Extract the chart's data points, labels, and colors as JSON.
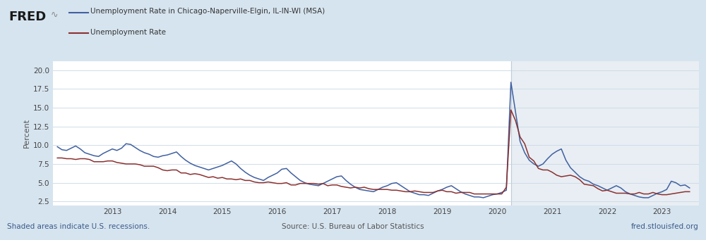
{
  "legend_chicago": "Unemployment Rate in Chicago-Naperville-Elgin, IL-IN-WI (MSA)",
  "legend_national": "Unemployment Rate",
  "ylabel": "Percent",
  "footer_left": "Shaded areas indicate U.S. recessions.",
  "footer_center": "Source: U.S. Bureau of Labor Statistics",
  "footer_right": "fred.stlouisfed.org",
  "bg_color": "#d6e4ef",
  "plot_bg_color": "#ffffff",
  "recession_bg_color": "#e8eef3",
  "chicago_color": "#4060a0",
  "national_color": "#8b3030",
  "yticks": [
    2.5,
    5.0,
    7.5,
    10.0,
    12.5,
    15.0,
    17.5,
    20.0
  ],
  "ylim": [
    2.0,
    21.2
  ],
  "recession_start": 2020.25,
  "xmin": 2011.92,
  "xmax": 2023.67,
  "xtick_positions": [
    2013.0,
    2014.0,
    2015.0,
    2016.0,
    2017.0,
    2018.0,
    2019.0,
    2020.0,
    2021.0,
    2022.0,
    2023.0
  ],
  "xtick_labels": [
    "2013",
    "2014",
    "2015",
    "2016",
    "2017",
    "2018",
    "2019",
    "2020",
    "2021",
    "2022",
    "2023"
  ],
  "dates_chicago": [
    2012.0,
    2012.083,
    2012.167,
    2012.25,
    2012.333,
    2012.417,
    2012.5,
    2012.583,
    2012.667,
    2012.75,
    2012.833,
    2012.917,
    2013.0,
    2013.083,
    2013.167,
    2013.25,
    2013.333,
    2013.417,
    2013.5,
    2013.583,
    2013.667,
    2013.75,
    2013.833,
    2013.917,
    2014.0,
    2014.083,
    2014.167,
    2014.25,
    2014.333,
    2014.417,
    2014.5,
    2014.583,
    2014.667,
    2014.75,
    2014.833,
    2014.917,
    2015.0,
    2015.083,
    2015.167,
    2015.25,
    2015.333,
    2015.417,
    2015.5,
    2015.583,
    2015.667,
    2015.75,
    2015.833,
    2015.917,
    2016.0,
    2016.083,
    2016.167,
    2016.25,
    2016.333,
    2016.417,
    2016.5,
    2016.583,
    2016.667,
    2016.75,
    2016.833,
    2016.917,
    2017.0,
    2017.083,
    2017.167,
    2017.25,
    2017.333,
    2017.417,
    2017.5,
    2017.583,
    2017.667,
    2017.75,
    2017.833,
    2017.917,
    2018.0,
    2018.083,
    2018.167,
    2018.25,
    2018.333,
    2018.417,
    2018.5,
    2018.583,
    2018.667,
    2018.75,
    2018.833,
    2018.917,
    2019.0,
    2019.083,
    2019.167,
    2019.25,
    2019.333,
    2019.417,
    2019.5,
    2019.583,
    2019.667,
    2019.75,
    2019.833,
    2019.917,
    2020.0,
    2020.083,
    2020.167,
    2020.25,
    2020.333,
    2020.417,
    2020.5,
    2020.583,
    2020.667,
    2020.75,
    2020.833,
    2020.917,
    2021.0,
    2021.083,
    2021.167,
    2021.25,
    2021.333,
    2021.417,
    2021.5,
    2021.583,
    2021.667,
    2021.75,
    2021.833,
    2021.917,
    2022.0,
    2022.083,
    2022.167,
    2022.25,
    2022.333,
    2022.417,
    2022.5,
    2022.583,
    2022.667,
    2022.75,
    2022.833,
    2022.917,
    2023.0,
    2023.083,
    2023.167,
    2023.25,
    2023.333,
    2023.417,
    2023.5
  ],
  "values_chicago": [
    9.8,
    9.4,
    9.3,
    9.6,
    9.9,
    9.5,
    9.0,
    8.8,
    8.6,
    8.5,
    8.9,
    9.2,
    9.5,
    9.3,
    9.6,
    10.2,
    10.1,
    9.7,
    9.3,
    9.0,
    8.8,
    8.5,
    8.4,
    8.6,
    8.7,
    8.9,
    9.1,
    8.5,
    8.0,
    7.6,
    7.3,
    7.1,
    6.9,
    6.7,
    6.9,
    7.1,
    7.3,
    7.6,
    7.9,
    7.5,
    6.9,
    6.4,
    6.0,
    5.7,
    5.5,
    5.3,
    5.7,
    6.0,
    6.3,
    6.8,
    6.9,
    6.3,
    5.8,
    5.3,
    5.0,
    4.8,
    4.7,
    4.6,
    4.9,
    5.2,
    5.5,
    5.8,
    5.9,
    5.3,
    4.8,
    4.4,
    4.1,
    4.0,
    3.9,
    3.8,
    4.1,
    4.4,
    4.6,
    4.9,
    5.0,
    4.6,
    4.2,
    3.8,
    3.6,
    3.4,
    3.4,
    3.3,
    3.6,
    3.9,
    4.1,
    4.4,
    4.6,
    4.2,
    3.8,
    3.5,
    3.3,
    3.1,
    3.1,
    3.0,
    3.2,
    3.4,
    3.5,
    3.7,
    4.0,
    18.4,
    14.5,
    10.5,
    9.0,
    8.0,
    7.5,
    7.2,
    7.5,
    8.2,
    8.8,
    9.2,
    9.5,
    8.0,
    7.0,
    6.4,
    5.8,
    5.4,
    5.2,
    4.8,
    4.6,
    4.3,
    4.0,
    4.3,
    4.6,
    4.3,
    3.8,
    3.5,
    3.3,
    3.1,
    3.0,
    3.0,
    3.3,
    3.6,
    3.8,
    4.1,
    5.2,
    5.0,
    4.6,
    4.7,
    4.3
  ],
  "dates_national": [
    2012.0,
    2012.083,
    2012.167,
    2012.25,
    2012.333,
    2012.417,
    2012.5,
    2012.583,
    2012.667,
    2012.75,
    2012.833,
    2012.917,
    2013.0,
    2013.083,
    2013.167,
    2013.25,
    2013.333,
    2013.417,
    2013.5,
    2013.583,
    2013.667,
    2013.75,
    2013.833,
    2013.917,
    2014.0,
    2014.083,
    2014.167,
    2014.25,
    2014.333,
    2014.417,
    2014.5,
    2014.583,
    2014.667,
    2014.75,
    2014.833,
    2014.917,
    2015.0,
    2015.083,
    2015.167,
    2015.25,
    2015.333,
    2015.417,
    2015.5,
    2015.583,
    2015.667,
    2015.75,
    2015.833,
    2015.917,
    2016.0,
    2016.083,
    2016.167,
    2016.25,
    2016.333,
    2016.417,
    2016.5,
    2016.583,
    2016.667,
    2016.75,
    2016.833,
    2016.917,
    2017.0,
    2017.083,
    2017.167,
    2017.25,
    2017.333,
    2017.417,
    2017.5,
    2017.583,
    2017.667,
    2017.75,
    2017.833,
    2017.917,
    2018.0,
    2018.083,
    2018.167,
    2018.25,
    2018.333,
    2018.417,
    2018.5,
    2018.583,
    2018.667,
    2018.75,
    2018.833,
    2018.917,
    2019.0,
    2019.083,
    2019.167,
    2019.25,
    2019.333,
    2019.417,
    2019.5,
    2019.583,
    2019.667,
    2019.75,
    2019.833,
    2019.917,
    2020.0,
    2020.083,
    2020.167,
    2020.25,
    2020.333,
    2020.417,
    2020.5,
    2020.583,
    2020.667,
    2020.75,
    2020.833,
    2020.917,
    2021.0,
    2021.083,
    2021.167,
    2021.25,
    2021.333,
    2021.417,
    2021.5,
    2021.583,
    2021.667,
    2021.75,
    2021.833,
    2021.917,
    2022.0,
    2022.083,
    2022.167,
    2022.25,
    2022.333,
    2022.417,
    2022.5,
    2022.583,
    2022.667,
    2022.75,
    2022.833,
    2022.917,
    2023.0,
    2023.083,
    2023.167,
    2023.25,
    2023.333,
    2023.417,
    2023.5
  ],
  "values_national": [
    8.3,
    8.3,
    8.2,
    8.2,
    8.1,
    8.2,
    8.2,
    8.1,
    7.8,
    7.8,
    7.8,
    7.9,
    7.9,
    7.7,
    7.6,
    7.5,
    7.5,
    7.5,
    7.4,
    7.2,
    7.2,
    7.2,
    7.0,
    6.7,
    6.6,
    6.7,
    6.7,
    6.3,
    6.3,
    6.1,
    6.2,
    6.1,
    5.9,
    5.7,
    5.8,
    5.6,
    5.7,
    5.5,
    5.5,
    5.4,
    5.5,
    5.3,
    5.3,
    5.1,
    5.0,
    5.0,
    5.1,
    5.0,
    4.9,
    4.9,
    5.0,
    4.7,
    4.7,
    4.9,
    4.9,
    4.9,
    4.9,
    4.8,
    4.9,
    4.6,
    4.7,
    4.7,
    4.5,
    4.4,
    4.3,
    4.4,
    4.3,
    4.4,
    4.2,
    4.1,
    4.1,
    4.1,
    4.1,
    4.0,
    4.0,
    3.9,
    3.8,
    3.8,
    3.9,
    3.8,
    3.7,
    3.7,
    3.7,
    3.9,
    4.0,
    3.8,
    3.8,
    3.6,
    3.7,
    3.7,
    3.7,
    3.5,
    3.5,
    3.5,
    3.5,
    3.5,
    3.5,
    3.5,
    4.4,
    14.7,
    13.3,
    11.1,
    10.2,
    8.4,
    7.9,
    6.9,
    6.7,
    6.7,
    6.4,
    6.0,
    5.8,
    5.9,
    6.0,
    5.8,
    5.4,
    4.8,
    4.7,
    4.6,
    4.2,
    3.9,
    4.0,
    3.8,
    3.6,
    3.6,
    3.6,
    3.5,
    3.5,
    3.7,
    3.5,
    3.5,
    3.7,
    3.5,
    3.4,
    3.4,
    3.5,
    3.6,
    3.7,
    3.8,
    3.8
  ]
}
